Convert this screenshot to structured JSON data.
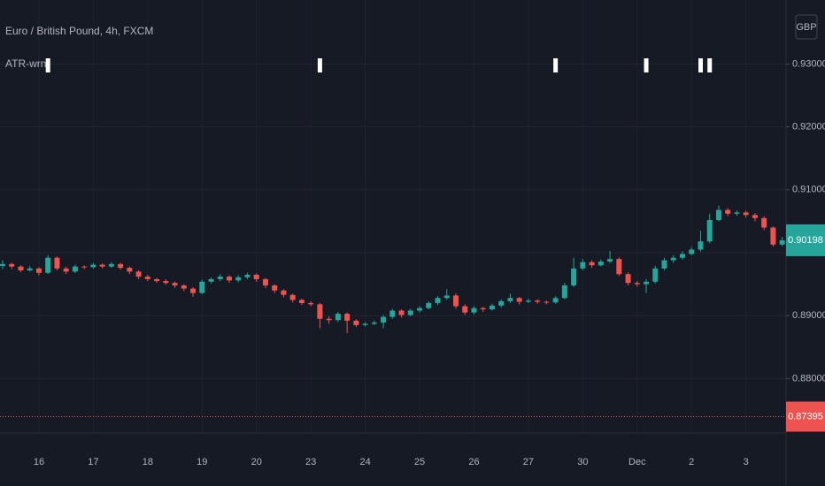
{
  "chart_data": {
    "type": "candlestick",
    "title": "Euro / British Pound, 4h, FXCM",
    "indicator": "ATR-wrn",
    "currency": "GBP",
    "up_color": "#26a69a",
    "down_color": "#ef5350",
    "grid": true,
    "ylim": [
      0.87135,
      0.94017
    ],
    "yticks": [
      {
        "value": 0.88,
        "label": "0.88000"
      },
      {
        "value": 0.89,
        "label": "0.89000"
      },
      {
        "value": 0.9,
        "label": "0.90000"
      },
      {
        "value": 0.91,
        "label": "0.91000"
      },
      {
        "value": 0.92,
        "label": "0.92000"
      },
      {
        "value": 0.93,
        "label": "0.93000"
      }
    ],
    "last_price": {
      "value": 0.90198,
      "label": "0.90198"
    },
    "reference_line": {
      "value": 0.87395,
      "label": "0.87395"
    },
    "atr_warnings": [
      5,
      35,
      61,
      71,
      77,
      78
    ],
    "categories": [
      null,
      null,
      null,
      null,
      "16",
      null,
      null,
      null,
      null,
      null,
      "17",
      null,
      null,
      null,
      null,
      null,
      "18",
      null,
      null,
      null,
      null,
      null,
      "19",
      null,
      null,
      null,
      null,
      null,
      "20",
      null,
      null,
      null,
      null,
      null,
      "23",
      null,
      null,
      null,
      null,
      null,
      "24",
      null,
      null,
      null,
      null,
      null,
      "25",
      null,
      null,
      null,
      null,
      null,
      "26",
      null,
      null,
      null,
      null,
      null,
      "27",
      null,
      null,
      null,
      null,
      null,
      "30",
      null,
      null,
      null,
      null,
      null,
      "Dec",
      null,
      null,
      null,
      null,
      null,
      "2",
      null,
      null,
      null,
      null,
      null,
      "3",
      null,
      null,
      null,
      null
    ],
    "ohlc": [
      [
        0.8979,
        0.8988,
        0.8974,
        0.8982
      ],
      [
        0.8982,
        0.8984,
        0.8974,
        0.8978
      ],
      [
        0.8978,
        0.898,
        0.8969,
        0.8972
      ],
      [
        0.8972,
        0.8979,
        0.897,
        0.8975
      ],
      [
        0.8975,
        0.8977,
        0.8964,
        0.8968
      ],
      [
        0.8968,
        0.8996,
        0.8966,
        0.8992
      ],
      [
        0.8992,
        0.8994,
        0.8972,
        0.8975
      ],
      [
        0.8975,
        0.8978,
        0.8966,
        0.897
      ],
      [
        0.897,
        0.8981,
        0.8968,
        0.8978
      ],
      [
        0.8978,
        0.898,
        0.8974,
        0.8977
      ],
      [
        0.8977,
        0.8984,
        0.8975,
        0.8981
      ],
      [
        0.8981,
        0.8983,
        0.8975,
        0.8978
      ],
      [
        0.8978,
        0.8985,
        0.8976,
        0.8982
      ],
      [
        0.8982,
        0.8984,
        0.8973,
        0.8976
      ],
      [
        0.8976,
        0.8978,
        0.8966,
        0.897
      ],
      [
        0.897,
        0.8972,
        0.8958,
        0.8962
      ],
      [
        0.8962,
        0.8965,
        0.8955,
        0.8958
      ],
      [
        0.8958,
        0.896,
        0.8952,
        0.8955
      ],
      [
        0.8955,
        0.8958,
        0.8949,
        0.8952
      ],
      [
        0.8952,
        0.8954,
        0.8944,
        0.8948
      ],
      [
        0.8948,
        0.895,
        0.8939,
        0.8943
      ],
      [
        0.8943,
        0.8945,
        0.893,
        0.8936
      ],
      [
        0.8936,
        0.8957,
        0.8934,
        0.8954
      ],
      [
        0.8954,
        0.8961,
        0.8951,
        0.8958
      ],
      [
        0.8958,
        0.8966,
        0.8955,
        0.8962
      ],
      [
        0.8962,
        0.8964,
        0.8952,
        0.8956
      ],
      [
        0.8956,
        0.8964,
        0.8953,
        0.8961
      ],
      [
        0.8961,
        0.8968,
        0.8958,
        0.8965
      ],
      [
        0.8965,
        0.8967,
        0.8954,
        0.8958
      ],
      [
        0.8958,
        0.896,
        0.8944,
        0.8948
      ],
      [
        0.8948,
        0.895,
        0.8936,
        0.894
      ],
      [
        0.894,
        0.8942,
        0.8929,
        0.8933
      ],
      [
        0.8933,
        0.8935,
        0.8921,
        0.8925
      ],
      [
        0.8925,
        0.8927,
        0.8917,
        0.892
      ],
      [
        0.892,
        0.8923,
        0.8915,
        0.8918
      ],
      [
        0.8918,
        0.892,
        0.888,
        0.8895
      ],
      [
        0.8895,
        0.8899,
        0.8887,
        0.8893
      ],
      [
        0.8893,
        0.8906,
        0.889,
        0.8903
      ],
      [
        0.8903,
        0.8905,
        0.8872,
        0.8892
      ],
      [
        0.8892,
        0.8894,
        0.8882,
        0.8885
      ],
      [
        0.8885,
        0.889,
        0.8883,
        0.8887
      ],
      [
        0.8887,
        0.8892,
        0.8885,
        0.8889
      ],
      [
        0.8889,
        0.8901,
        0.888,
        0.8898
      ],
      [
        0.8898,
        0.8911,
        0.8895,
        0.8908
      ],
      [
        0.8908,
        0.891,
        0.8897,
        0.8901
      ],
      [
        0.8901,
        0.8911,
        0.8899,
        0.8908
      ],
      [
        0.8908,
        0.8915,
        0.8905,
        0.8912
      ],
      [
        0.8912,
        0.8923,
        0.891,
        0.892
      ],
      [
        0.892,
        0.8931,
        0.8917,
        0.8928
      ],
      [
        0.8928,
        0.8942,
        0.8925,
        0.8932
      ],
      [
        0.8932,
        0.8935,
        0.8911,
        0.8915
      ],
      [
        0.8915,
        0.8918,
        0.8901,
        0.8905
      ],
      [
        0.8905,
        0.8915,
        0.8902,
        0.8912
      ],
      [
        0.8912,
        0.8914,
        0.8906,
        0.891
      ],
      [
        0.891,
        0.8919,
        0.8908,
        0.8916
      ],
      [
        0.8916,
        0.8926,
        0.8913,
        0.8923
      ],
      [
        0.8923,
        0.8935,
        0.892,
        0.8928
      ],
      [
        0.8928,
        0.893,
        0.8918,
        0.8922
      ],
      [
        0.8922,
        0.8927,
        0.892,
        0.8924
      ],
      [
        0.8924,
        0.8926,
        0.8919,
        0.8922
      ],
      [
        0.8922,
        0.8924,
        0.8918,
        0.8921
      ],
      [
        0.8921,
        0.8931,
        0.8919,
        0.8928
      ],
      [
        0.8928,
        0.8952,
        0.8926,
        0.8948
      ],
      [
        0.8948,
        0.8992,
        0.8945,
        0.8975
      ],
      [
        0.8975,
        0.899,
        0.8972,
        0.8985
      ],
      [
        0.8985,
        0.8988,
        0.8976,
        0.898
      ],
      [
        0.898,
        0.8989,
        0.8978,
        0.8986
      ],
      [
        0.8986,
        0.9003,
        0.8983,
        0.899
      ],
      [
        0.899,
        0.8993,
        0.8963,
        0.8966
      ],
      [
        0.8966,
        0.8969,
        0.8948,
        0.8952
      ],
      [
        0.8952,
        0.8955,
        0.8946,
        0.895
      ],
      [
        0.895,
        0.8958,
        0.8936,
        0.8954
      ],
      [
        0.8954,
        0.8979,
        0.8951,
        0.8975
      ],
      [
        0.8975,
        0.8992,
        0.8972,
        0.8988
      ],
      [
        0.8988,
        0.8996,
        0.8984,
        0.8992
      ],
      [
        0.8992,
        0.9002,
        0.8989,
        0.8998
      ],
      [
        0.8998,
        0.9009,
        0.8996,
        0.9005
      ],
      [
        0.9005,
        0.9035,
        0.9002,
        0.9018
      ],
      [
        0.9018,
        0.9062,
        0.9015,
        0.9052
      ],
      [
        0.9052,
        0.9075,
        0.905,
        0.9068
      ],
      [
        0.9068,
        0.9071,
        0.9058,
        0.9062
      ],
      [
        0.9062,
        0.9067,
        0.9059,
        0.9064
      ],
      [
        0.9064,
        0.9067,
        0.9056,
        0.906
      ],
      [
        0.906,
        0.9063,
        0.905,
        0.9055
      ],
      [
        0.9055,
        0.9058,
        0.9036,
        0.904
      ],
      [
        0.904,
        0.9042,
        0.901,
        0.9013
      ],
      [
        0.9013,
        0.9025,
        0.901,
        0.90198
      ]
    ]
  }
}
